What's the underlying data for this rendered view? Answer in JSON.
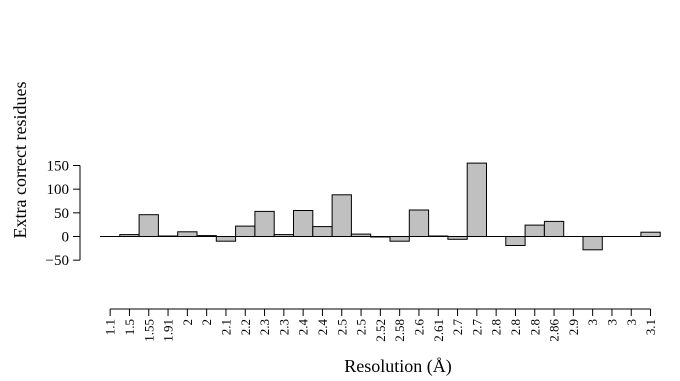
{
  "chart_data": {
    "type": "bar",
    "categories": [
      "1.1",
      "1.5",
      "1.55",
      "1.91",
      "2",
      "2",
      "2.1",
      "2.2",
      "2.3",
      "2.3",
      "2.4",
      "2.4",
      "2.5",
      "2.5",
      "2.52",
      "2.58",
      "2.6",
      "2.61",
      "2.7",
      "2.7",
      "2.8",
      "2.8",
      "2.8",
      "2.86",
      "2.9",
      "3",
      "3",
      "3",
      "3.1"
    ],
    "values": [
      0,
      4,
      46,
      1,
      10,
      2,
      -10,
      22,
      53,
      4,
      55,
      21,
      88,
      5,
      -1,
      -10,
      56,
      1,
      -6,
      155,
      0,
      -19,
      24,
      32,
      0,
      -28,
      0,
      0,
      9
    ],
    "xlabel": "Resolution (Å)",
    "ylabel": "Extra correct residues",
    "ylim": [
      -50,
      150
    ],
    "yticks": [
      -50,
      0,
      50,
      100,
      150
    ],
    "grid": false,
    "bar_color": "#c0c0c0"
  }
}
